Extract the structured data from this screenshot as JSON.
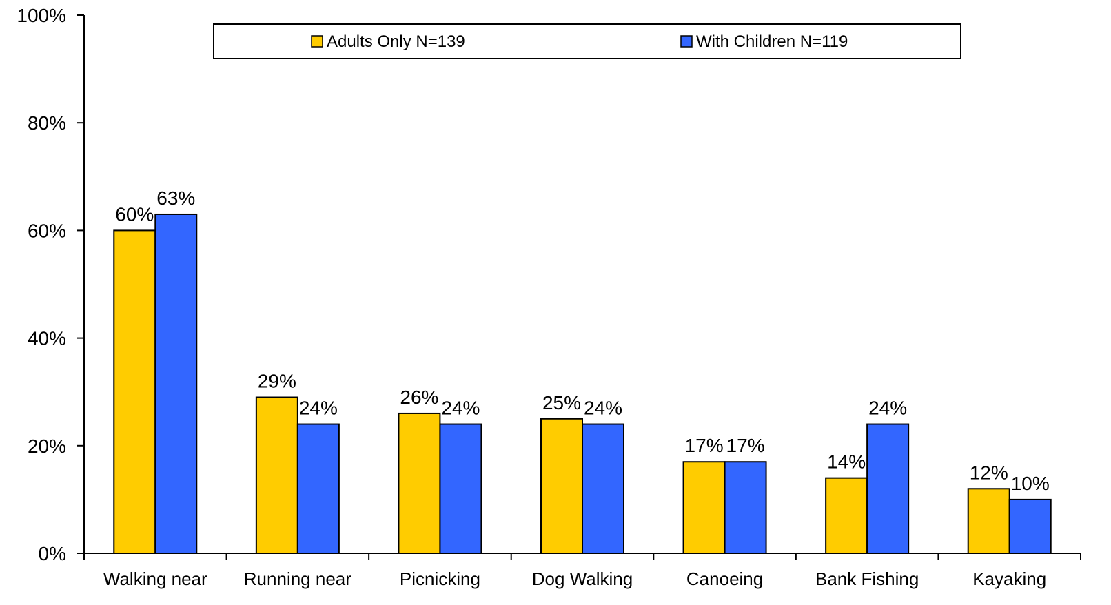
{
  "chart_data": {
    "type": "bar",
    "categories": [
      "Walking near",
      "Running near",
      "Picnicking",
      "Dog Walking",
      "Canoeing",
      "Bank Fishing",
      "Kayaking"
    ],
    "series": [
      {
        "name": "Adults Only N=139",
        "color": "#ffcc00",
        "values": [
          60,
          29,
          26,
          25,
          17,
          14,
          12
        ],
        "labels": [
          "60%",
          "29%",
          "26%",
          "25%",
          "17%",
          "14%",
          "12%"
        ]
      },
      {
        "name": "With Children N=119",
        "color": "#3366ff",
        "values": [
          63,
          24,
          24,
          24,
          17,
          24,
          10
        ],
        "labels": [
          "63%",
          "24%",
          "24%",
          "24%",
          "17%",
          "24%",
          "10%"
        ]
      }
    ],
    "ylim": [
      0,
      100
    ],
    "yticks": [
      0,
      20,
      40,
      60,
      80,
      100
    ],
    "ytick_labels": [
      "0%",
      "20%",
      "40%",
      "60%",
      "80%",
      "100%"
    ],
    "legend_position": "top",
    "grid": false
  }
}
